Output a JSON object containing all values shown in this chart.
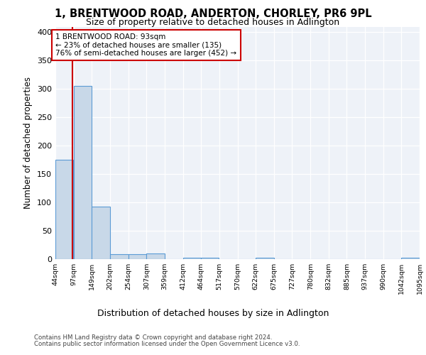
{
  "title1": "1, BRENTWOOD ROAD, ANDERTON, CHORLEY, PR6 9PL",
  "title2": "Size of property relative to detached houses in Adlington",
  "xlabel": "Distribution of detached houses by size in Adlington",
  "ylabel": "Number of detached properties",
  "footer1": "Contains HM Land Registry data © Crown copyright and database right 2024.",
  "footer2": "Contains public sector information licensed under the Open Government Licence v3.0.",
  "annotation_line1": "1 BRENTWOOD ROAD: 93sqm",
  "annotation_line2": "← 23% of detached houses are smaller (135)",
  "annotation_line3": "76% of semi-detached houses are larger (452) →",
  "property_size": 93,
  "bar_edges": [
    44,
    97,
    149,
    202,
    254,
    307,
    359,
    412,
    464,
    517,
    570,
    622,
    675,
    727,
    780,
    832,
    885,
    937,
    990,
    1042,
    1095
  ],
  "bar_heights": [
    175,
    305,
    93,
    9,
    9,
    10,
    0,
    3,
    2,
    0,
    0,
    2,
    0,
    0,
    0,
    0,
    0,
    0,
    0,
    2
  ],
  "bar_color": "#c8d8e8",
  "bar_edge_color": "#5b9bd5",
  "vline_color": "#cc0000",
  "annotation_box_color": "#cc0000",
  "bg_color": "#eef2f8",
  "ylim": [
    0,
    410
  ],
  "yticks": [
    0,
    50,
    100,
    150,
    200,
    250,
    300,
    350,
    400
  ]
}
